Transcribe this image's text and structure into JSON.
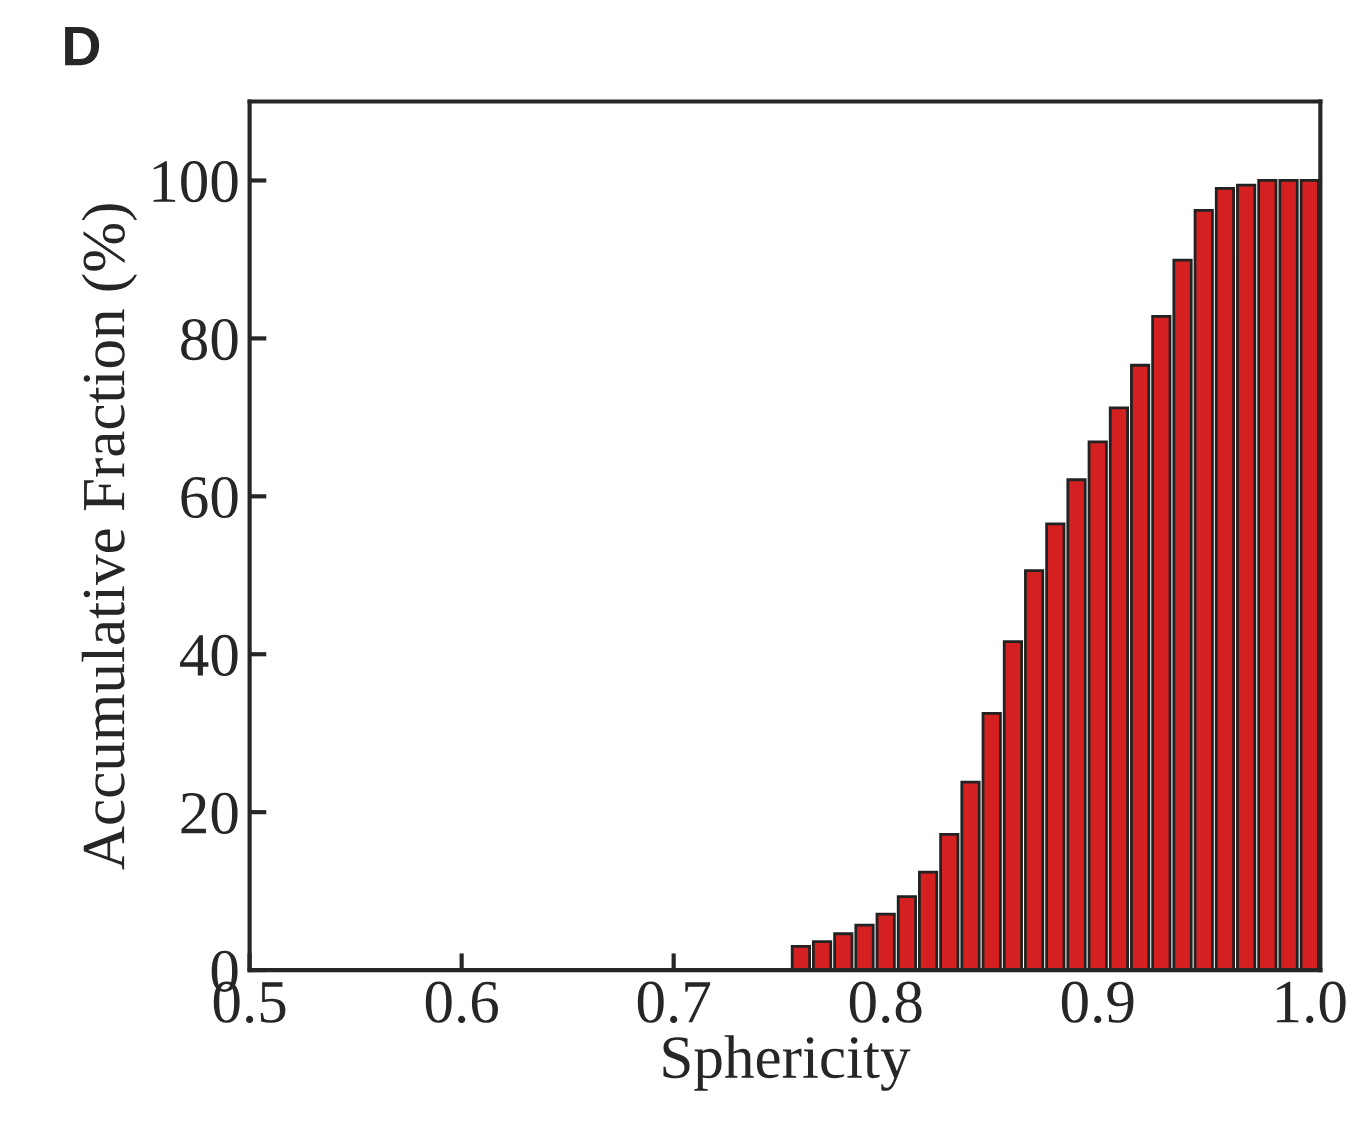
{
  "chart_data": {
    "type": "bar",
    "title": "D",
    "xlabel": "Sphericity",
    "ylabel": "Accumulative Fraction (%)",
    "x": [
      0.76,
      0.77,
      0.78,
      0.79,
      0.8,
      0.81,
      0.82,
      0.83,
      0.84,
      0.85,
      0.86,
      0.87,
      0.88,
      0.89,
      0.9,
      0.91,
      0.92,
      0.93,
      0.94,
      0.95,
      0.96,
      0.97,
      0.98,
      0.99,
      1.0
    ],
    "values": [
      3.0,
      3.6,
      4.6,
      5.7,
      7.1,
      9.3,
      12.4,
      17.2,
      23.8,
      32.5,
      41.6,
      50.6,
      56.5,
      62.1,
      66.9,
      71.2,
      76.6,
      82.8,
      89.9,
      96.2,
      99.0,
      99.4,
      100,
      100,
      100
    ],
    "color": "#d42020",
    "xlim": [
      0.5,
      1.005
    ],
    "xticks": [
      {
        "value": 0.5,
        "label": "0.5"
      },
      {
        "value": 0.6,
        "label": "0.6"
      },
      {
        "value": 0.7,
        "label": "0.7"
      },
      {
        "value": 0.8,
        "label": "0.8"
      },
      {
        "value": 0.9,
        "label": "0.9"
      },
      {
        "value": 1.0,
        "label": "1.0"
      }
    ],
    "ylim": [
      0,
      110
    ],
    "yticks": [
      0,
      20,
      40,
      60,
      80,
      100
    ],
    "grid": false,
    "legend": false
  }
}
